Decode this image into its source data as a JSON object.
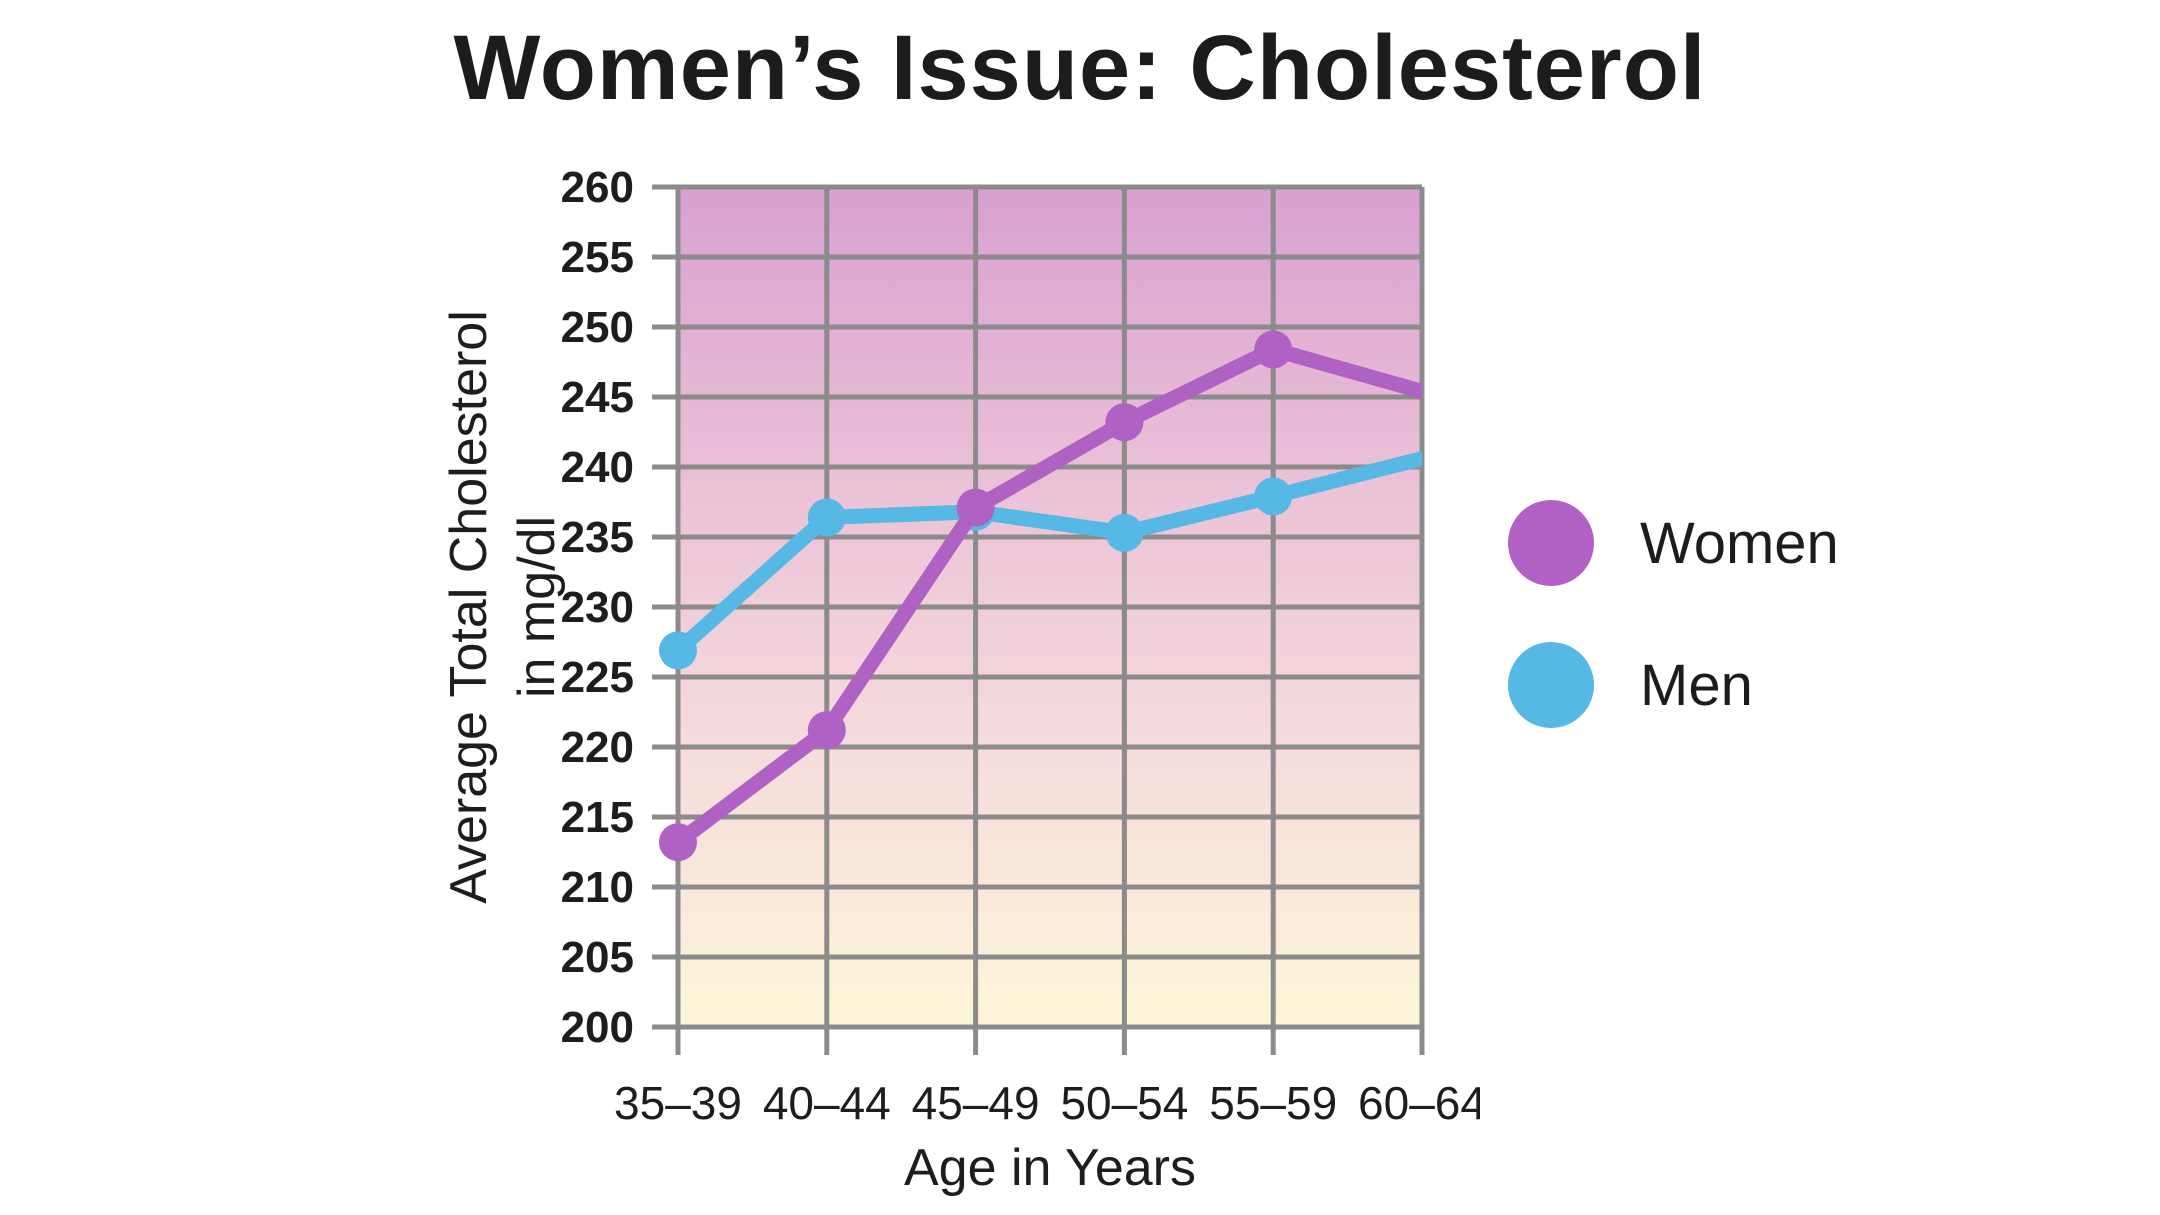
{
  "page": {
    "background": "#ffffff"
  },
  "chart_data": {
    "type": "line",
    "title": "Women’s Issue: Cholesterol",
    "xlabel": "Age in Years",
    "ylabel": "Average Total Cholesterol in mg/dl",
    "ylabel_lines": [
      "Average Total Cholesterol",
      "in mg/dl"
    ],
    "categories": [
      "35–39",
      "40–44",
      "45–49",
      "50–54",
      "55–59",
      "60–64"
    ],
    "series": [
      {
        "name": "Women",
        "color": "#b061c4",
        "values": [
          213.2,
          221.2,
          237.1,
          243.2,
          248.4,
          245.4
        ]
      },
      {
        "name": "Men",
        "color": "#56b8e5",
        "values": [
          226.9,
          236.4,
          236.8,
          235.3,
          237.9,
          240.6
        ]
      }
    ],
    "ylim": [
      200,
      260
    ],
    "y_tick_step": 5,
    "y_ticks": [
      260,
      255,
      250,
      245,
      240,
      235,
      230,
      225,
      220,
      215,
      210,
      205,
      200
    ],
    "grid": true,
    "legend_position": "right",
    "gridline_color": "#8b8b8b",
    "text_color": "#1d1d1d",
    "plot_bg_gradient": [
      "#d8a0d1",
      "#eabfd6",
      "#f5dcdc",
      "#fdf5d8"
    ]
  }
}
